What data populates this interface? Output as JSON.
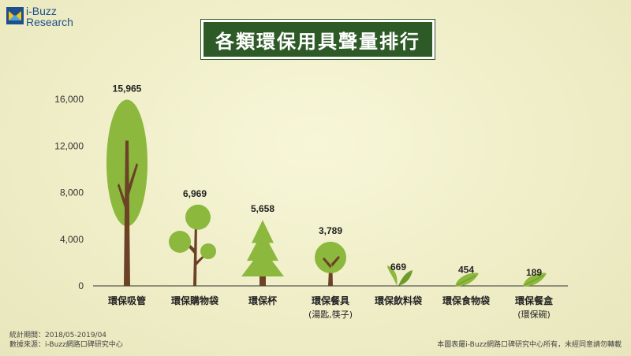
{
  "brand": {
    "line1": "i-Buzz",
    "line2": "Research"
  },
  "title": "各類環保用具聲量排行",
  "chart_data": {
    "type": "bar",
    "categories": [
      "環保吸管",
      "環保購物袋",
      "環保杯",
      "環保餐具",
      "環保飲料袋",
      "環保食物袋",
      "環保餐盒"
    ],
    "category_sublabels": [
      "",
      "",
      "",
      "(湯匙,筷子)",
      "",
      "",
      "(環保碗)"
    ],
    "values": [
      15965,
      6969,
      5658,
      3789,
      669,
      454,
      189
    ],
    "value_labels": [
      "15,965",
      "6,969",
      "5,658",
      "3,789",
      "669",
      "454",
      "189"
    ],
    "yticks": [
      0,
      4000,
      8000,
      12000,
      16000
    ],
    "ytick_labels": [
      "0",
      "4,000",
      "8,000",
      "12,000",
      "16,000"
    ],
    "ylim": [
      0,
      16000
    ],
    "mark_icons": [
      "tree",
      "round-tree",
      "pine-tree",
      "small-tree",
      "sprout",
      "leaf",
      "leaf"
    ],
    "colors": {
      "foliage": "#8cb83e",
      "foliage_dark": "#6f9a2c",
      "trunk": "#6b4226"
    }
  },
  "footer": {
    "period": "統計期間：2018/05-2019/04",
    "source": "數據來源：i-Buzz網路口碑研究中心",
    "copyright": "本圖表屬i-Buzz網路口碑研究中心所有，未經同意請勿轉載"
  }
}
